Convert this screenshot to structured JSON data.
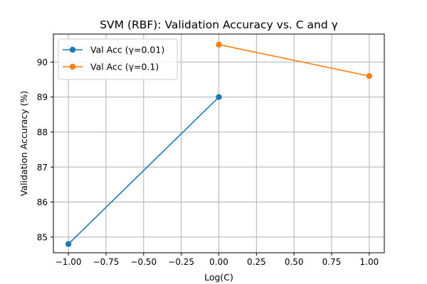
{
  "chart_data": {
    "type": "line",
    "title": "SVM (RBF): Validation Accuracy vs. C and γ",
    "xlabel": "Log(C)",
    "ylabel": "Validation Accuracy (%)",
    "xlim": [
      -1.1,
      1.1
    ],
    "ylim": [
      84.55,
      90.8
    ],
    "xticks": [
      -1.0,
      -0.75,
      -0.5,
      -0.25,
      0.0,
      0.25,
      0.5,
      0.75,
      1.0
    ],
    "xtick_labels": [
      "−1.00",
      "−0.75",
      "−0.50",
      "−0.25",
      "0.00",
      "0.25",
      "0.50",
      "0.75",
      "1.00"
    ],
    "yticks": [
      85,
      86,
      87,
      88,
      89,
      90
    ],
    "ytick_labels": [
      "85",
      "86",
      "87",
      "88",
      "89",
      "90"
    ],
    "grid": true,
    "legend_position": "top-left",
    "series": [
      {
        "name": "Val Acc (γ=0.01)",
        "color": "#1f77b4",
        "marker": "circle",
        "x": [
          -1.0,
          0.0
        ],
        "y": [
          84.8,
          89.0
        ]
      },
      {
        "name": "Val Acc (γ=0.1)",
        "color": "#ff7f0e",
        "marker": "circle",
        "x": [
          0.0,
          1.0
        ],
        "y": [
          90.5,
          89.6
        ]
      }
    ]
  }
}
